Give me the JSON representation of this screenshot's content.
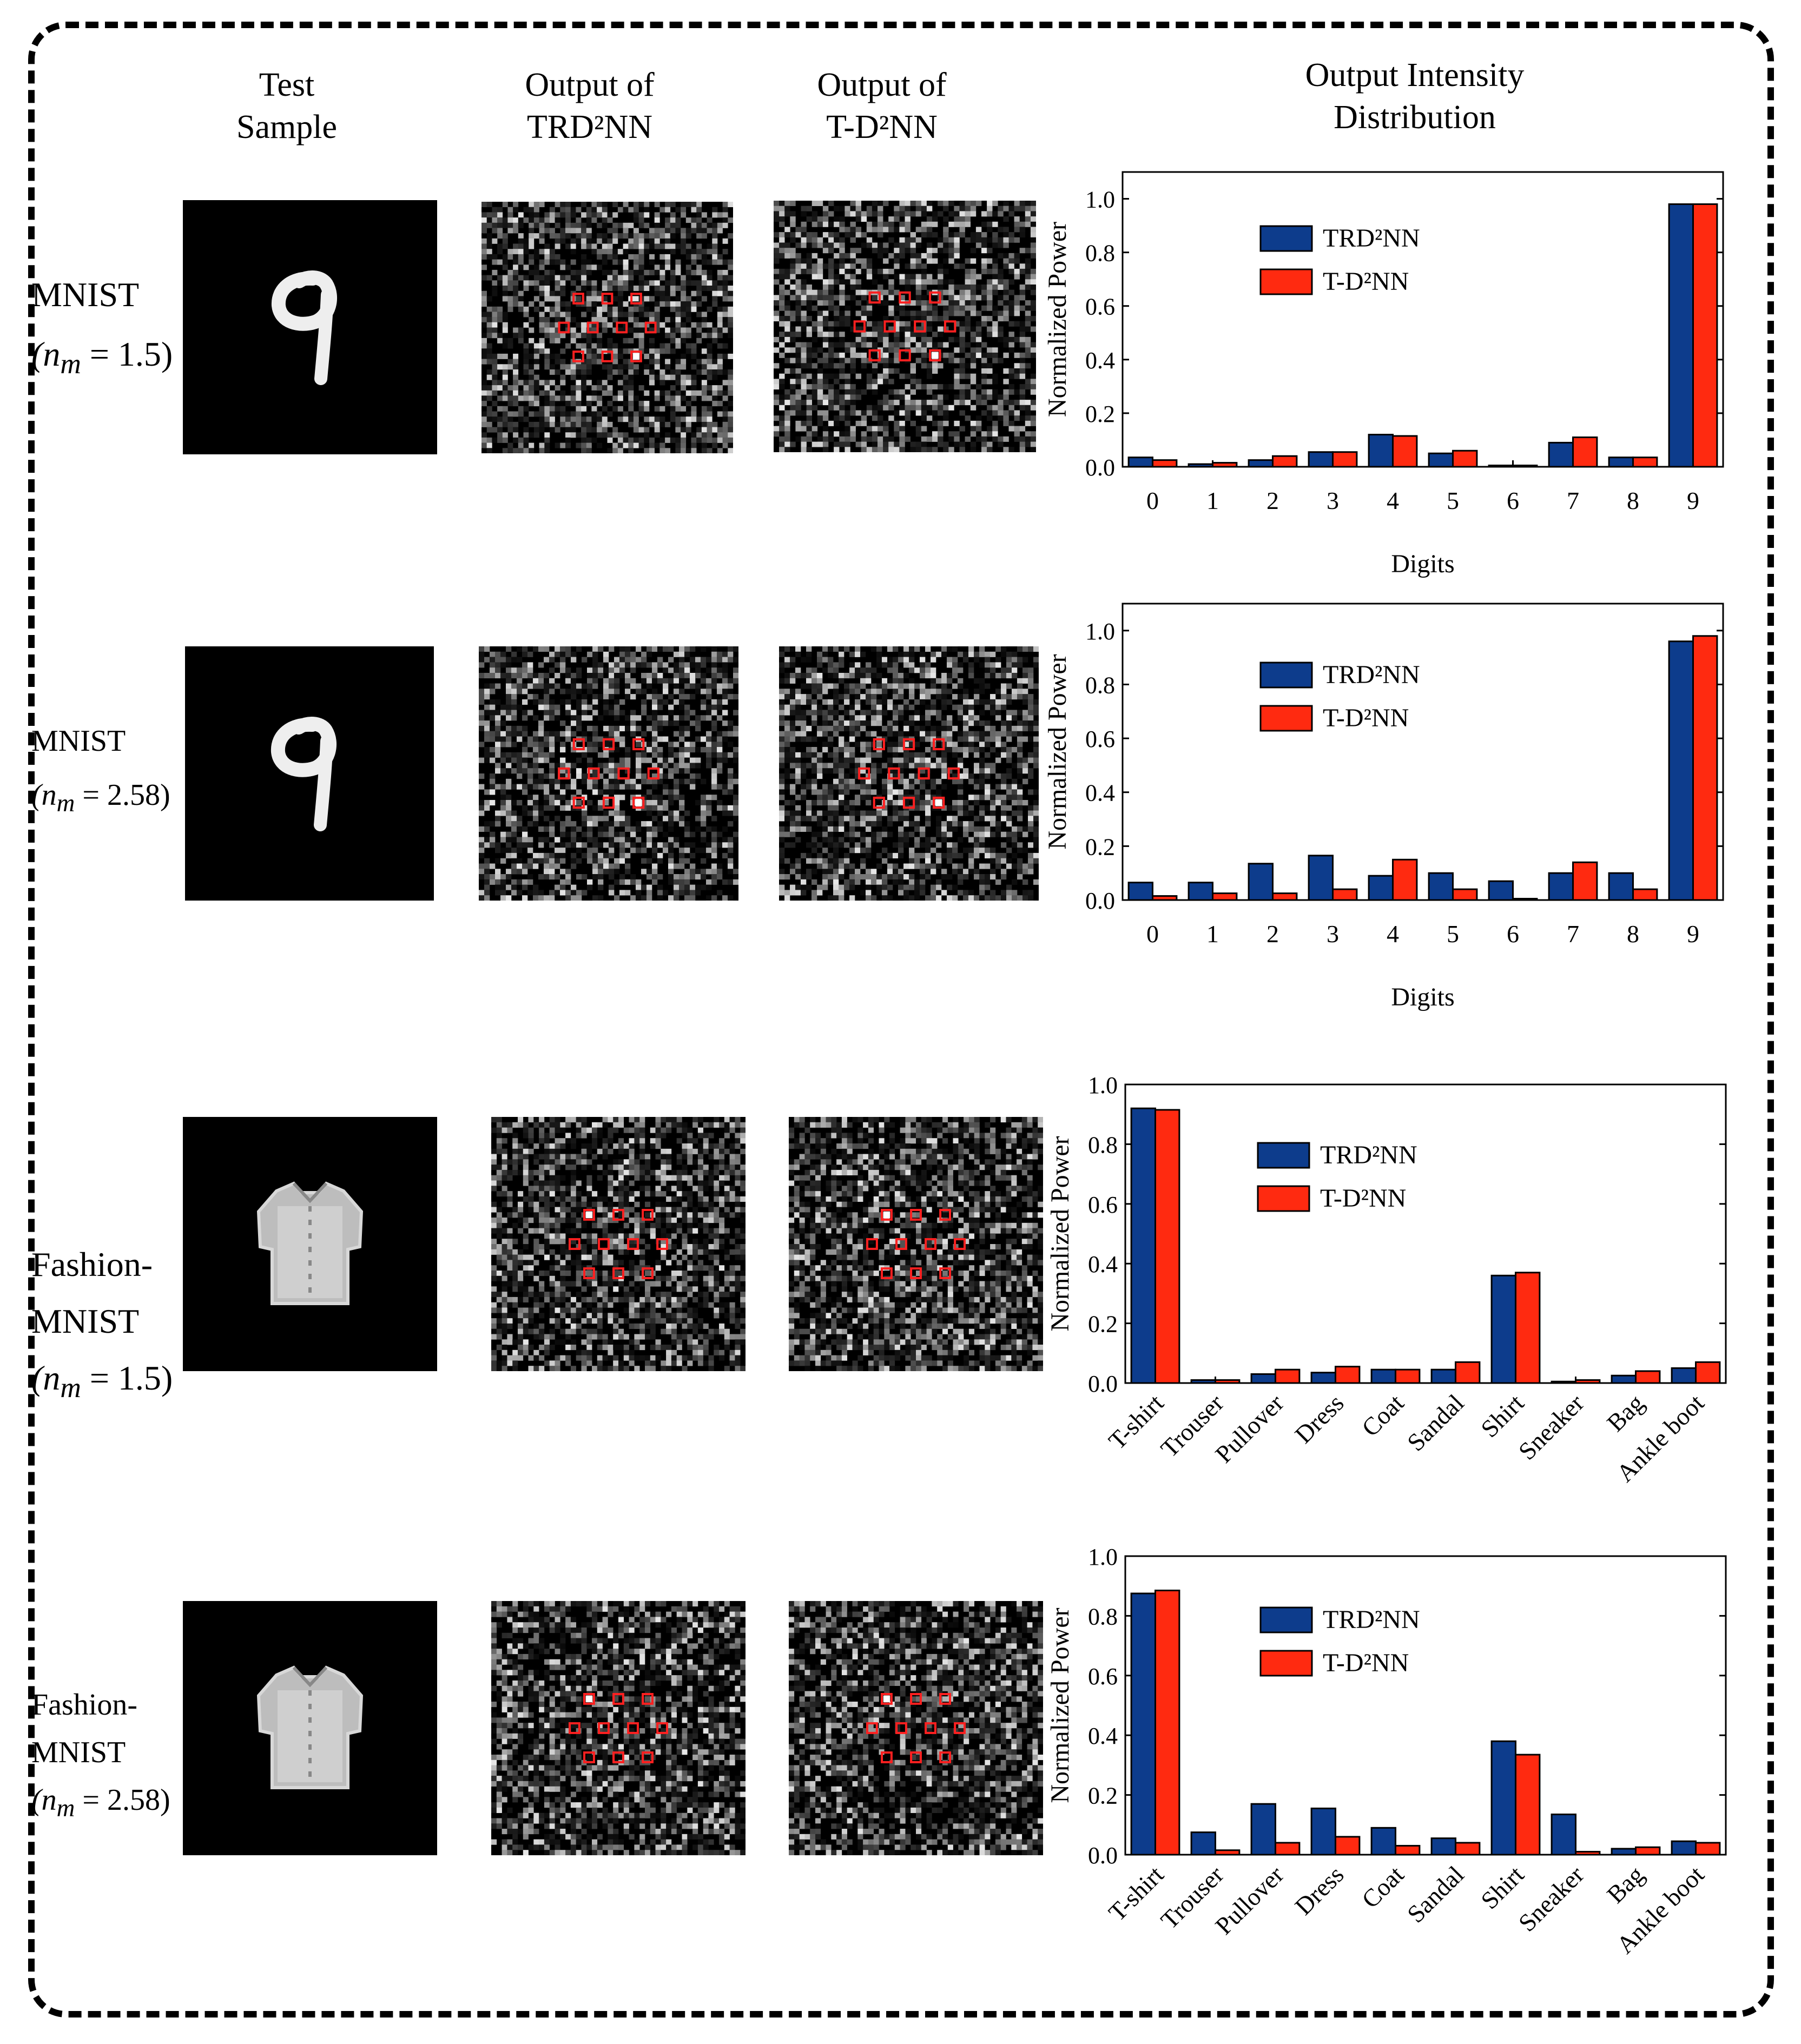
{
  "colors": {
    "trd2nn": "#0d3c8c",
    "td2nn": "#ff2a10",
    "noise": "#ffffff",
    "marker": "#ff2020",
    "background": "#000000"
  },
  "headers": {
    "test_sample": "Test\nSample",
    "trd2nn_output": "Output of\nTRD²NN",
    "td2nn_output": "Output of\nT-D²NN",
    "distribution": "Output Intensity\nDistribution"
  },
  "rows": [
    {
      "dataset": "MNIST",
      "index": "(n",
      "sub": "m",
      "value": " = 1.5)",
      "sample": "digit-9"
    },
    {
      "dataset": "MNIST",
      "index": "(n",
      "sub": "m",
      "value": " = 2.58)",
      "sample": "digit-9"
    },
    {
      "dataset": "Fashion-\nMNIST",
      "index": "(n",
      "sub": "m",
      "value": " = 1.5)",
      "sample": "tshirt"
    },
    {
      "dataset": "Fashion-\nMNIST",
      "index": "(n",
      "sub": "m",
      "value": " = 2.58)",
      "sample": "tshirt"
    }
  ],
  "chart_data": [
    {
      "type": "bar",
      "categories": [
        "0",
        "1",
        "2",
        "3",
        "4",
        "5",
        "6",
        "7",
        "8",
        "9"
      ],
      "xlabel": "Digits",
      "ylabel": "Normalized Power",
      "ylim": [
        0,
        1.1
      ],
      "yticks": [
        "0.0",
        "0.2",
        "0.4",
        "0.6",
        "0.8",
        "1.0"
      ],
      "legend_position": "upper-center",
      "series": [
        {
          "name": "TRD²NN",
          "values": [
            0.035,
            0.01,
            0.025,
            0.055,
            0.12,
            0.05,
            0.005,
            0.09,
            0.035,
            0.98
          ]
        },
        {
          "name": "T-D²NN",
          "values": [
            0.025,
            0.015,
            0.04,
            0.055,
            0.115,
            0.06,
            0.005,
            0.11,
            0.035,
            0.98
          ]
        }
      ]
    },
    {
      "type": "bar",
      "categories": [
        "0",
        "1",
        "2",
        "3",
        "4",
        "5",
        "6",
        "7",
        "8",
        "9"
      ],
      "xlabel": "Digits",
      "ylabel": "Normalized Power",
      "ylim": [
        0,
        1.1
      ],
      "yticks": [
        "0.0",
        "0.2",
        "0.4",
        "0.6",
        "0.8",
        "1.0"
      ],
      "legend_position": "upper-center",
      "series": [
        {
          "name": "TRD²NN",
          "values": [
            0.065,
            0.065,
            0.135,
            0.165,
            0.09,
            0.1,
            0.07,
            0.1,
            0.1,
            0.96
          ]
        },
        {
          "name": "T-D²NN",
          "values": [
            0.015,
            0.025,
            0.025,
            0.04,
            0.15,
            0.04,
            0.005,
            0.14,
            0.04,
            0.98
          ]
        }
      ]
    },
    {
      "type": "bar",
      "categories": [
        "T-shirt",
        "Trouser",
        "Pullover",
        "Dress",
        "Coat",
        "Sandal",
        "Shirt",
        "Sneaker",
        "Bag",
        "Ankle boot"
      ],
      "xlabel": "",
      "ylabel": "Normalized Power",
      "ylim": [
        0,
        1.0
      ],
      "yticks": [
        "0.0",
        "0.2",
        "0.4",
        "0.6",
        "0.8",
        "1.0"
      ],
      "legend_position": "upper-center",
      "series": [
        {
          "name": "TRD²NN",
          "values": [
            0.92,
            0.01,
            0.03,
            0.035,
            0.045,
            0.045,
            0.36,
            0.005,
            0.025,
            0.05
          ]
        },
        {
          "name": "T-D²NN",
          "values": [
            0.915,
            0.01,
            0.045,
            0.055,
            0.045,
            0.07,
            0.37,
            0.01,
            0.04,
            0.07
          ]
        }
      ]
    },
    {
      "type": "bar",
      "categories": [
        "T-shirt",
        "Trouser",
        "Pullover",
        "Dress",
        "Coat",
        "Sandal",
        "Shirt",
        "Sneaker",
        "Bag",
        "Ankle boot"
      ],
      "xlabel": "",
      "ylabel": "Normalized Power",
      "ylim": [
        0,
        1.0
      ],
      "yticks": [
        "0.0",
        "0.2",
        "0.4",
        "0.6",
        "0.8",
        "1.0"
      ],
      "legend_position": "upper-center",
      "series": [
        {
          "name": "TRD²NN",
          "values": [
            0.875,
            0.075,
            0.17,
            0.155,
            0.09,
            0.055,
            0.38,
            0.135,
            0.02,
            0.045
          ]
        },
        {
          "name": "T-D²NN",
          "values": [
            0.885,
            0.015,
            0.04,
            0.06,
            0.03,
            0.04,
            0.335,
            0.01,
            0.025,
            0.04
          ]
        }
      ]
    }
  ]
}
